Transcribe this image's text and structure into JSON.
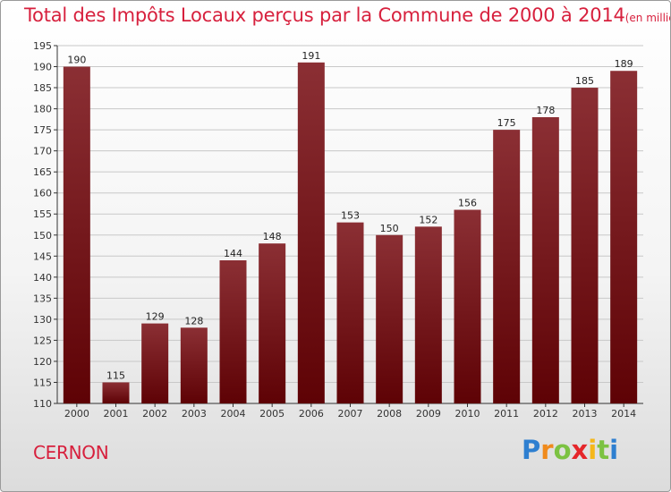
{
  "title": "Total des Impôts Locaux perçus par la Commune de 2000 à 2014",
  "subtitle": "(en milliers d'€)",
  "commune": "CERNON",
  "brand": {
    "letters": [
      "P",
      "r",
      "o",
      "x",
      "i",
      "t",
      "i"
    ],
    "colors": [
      "#2e7fd0",
      "#f08a1c",
      "#7cc242",
      "#e5262a",
      "#f5b71a",
      "#7cc242",
      "#2e7fd0"
    ]
  },
  "colors": {
    "bar_top": "#8b2f34",
    "bar_bottom": "#5e0205",
    "accent": "#d7203d"
  },
  "chart_data": {
    "type": "bar",
    "title": "Total des Impôts Locaux perçus par la Commune de 2000 à 2014",
    "subtitle": "(en milliers d'€)",
    "xlabel": "",
    "ylabel": "",
    "categories": [
      "2000",
      "2001",
      "2002",
      "2003",
      "2004",
      "2005",
      "2006",
      "2007",
      "2008",
      "2009",
      "2010",
      "2011",
      "2012",
      "2013",
      "2014"
    ],
    "values": [
      190,
      115,
      129,
      128,
      144,
      148,
      191,
      153,
      150,
      152,
      156,
      175,
      178,
      185,
      189
    ],
    "ylim": [
      110,
      195
    ],
    "yticks": [
      110,
      115,
      120,
      125,
      130,
      135,
      140,
      145,
      150,
      155,
      160,
      165,
      170,
      175,
      180,
      185,
      190,
      195
    ],
    "grid": true
  }
}
